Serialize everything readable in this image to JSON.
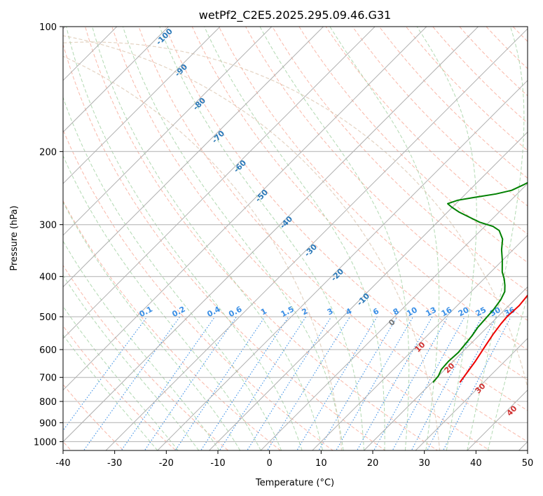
{
  "chart_data": {
    "type": "line",
    "subtype": "skew-t log-p diagram",
    "title": "wetPf2_C2E5.2025.295.09.46.G31",
    "xlabel": "Temperature (°C)",
    "ylabel": "Pressure (hPa)",
    "xlim": [
      -40,
      50
    ],
    "ylim": [
      1050,
      100
    ],
    "x_ticks": [
      -40,
      -30,
      -20,
      -10,
      0,
      10,
      20,
      30,
      40,
      50
    ],
    "y_ticks": [
      1000,
      900,
      800,
      700,
      600,
      500,
      400,
      300,
      200,
      100
    ],
    "grid": true,
    "series": [
      {
        "name": "Temperature",
        "color": "#ee0000",
        "points": [
          [
            25.4,
            720
          ],
          [
            25.0,
            690
          ],
          [
            24.3,
            640
          ],
          [
            23.3,
            590
          ],
          [
            22.5,
            550
          ],
          [
            22.0,
            520
          ],
          [
            21.8,
            500
          ],
          [
            22.0,
            470
          ],
          [
            21.6,
            440
          ],
          [
            20.4,
            410
          ],
          [
            19.0,
            385
          ],
          [
            17.3,
            360
          ],
          [
            15.6,
            335
          ],
          [
            14.6,
            310
          ],
          [
            13.6,
            290
          ],
          [
            12.2,
            265
          ],
          [
            10.8,
            245
          ],
          [
            9.4,
            230
          ],
          [
            7.4,
            215
          ],
          [
            5.9,
            200
          ],
          [
            4.0,
            185
          ],
          [
            2.3,
            173
          ],
          [
            0.9,
            165
          ],
          [
            -0.5,
            155
          ],
          [
            -2.0,
            145
          ],
          [
            -2.8,
            137
          ],
          [
            -3.1,
            130
          ],
          [
            -3.2,
            124
          ],
          [
            -2.4,
            117
          ],
          [
            -1.0,
            110
          ],
          [
            0.3,
            104
          ],
          [
            0.9,
            100
          ]
        ]
      },
      {
        "name": "Dewpoint",
        "color": "#008000",
        "points": [
          [
            20.2,
            720
          ],
          [
            20.0,
            695
          ],
          [
            19.3,
            670
          ],
          [
            19.1,
            640
          ],
          [
            19.3,
            610
          ],
          [
            19.0,
            580
          ],
          [
            18.7,
            555
          ],
          [
            18.2,
            530
          ],
          [
            18.0,
            505
          ],
          [
            17.8,
            480
          ],
          [
            17.3,
            455
          ],
          [
            16.5,
            435
          ],
          [
            15.3,
            420
          ],
          [
            13.9,
            405
          ],
          [
            12.2,
            390
          ],
          [
            9.9,
            365
          ],
          [
            7.8,
            345
          ],
          [
            5.9,
            325
          ],
          [
            3.6,
            310
          ],
          [
            1.6,
            303
          ],
          [
            -1.8,
            296
          ],
          [
            -4.0,
            290
          ],
          [
            -7.7,
            280
          ],
          [
            -10.2,
            272
          ],
          [
            -11.6,
            267
          ],
          [
            -10.3,
            262
          ],
          [
            -7.7,
            258
          ],
          [
            -4.1,
            253
          ],
          [
            -1.8,
            248
          ],
          [
            -0.5,
            240
          ],
          [
            0.8,
            230
          ],
          [
            1.7,
            222
          ],
          [
            2.4,
            213
          ],
          [
            2.6,
            203
          ],
          [
            2.3,
            195
          ],
          [
            1.6,
            187
          ],
          [
            0.4,
            180
          ],
          [
            -0.7,
            173
          ],
          [
            -2.0,
            167
          ],
          [
            -3.3,
            160
          ],
          [
            -4.2,
            153
          ],
          [
            -4.8,
            145
          ],
          [
            -5.4,
            138
          ],
          [
            -5.7,
            130
          ],
          [
            -6.0,
            123
          ],
          [
            -6.4,
            117
          ],
          [
            -6.4,
            112
          ],
          [
            -5.8,
            107
          ],
          [
            -4.6,
            103
          ],
          [
            -3.8,
            100
          ]
        ]
      }
    ],
    "temperature_isotherm_labels": [
      "-100",
      "-90",
      "-80",
      "-70",
      "-60",
      "-50",
      "-40",
      "-30",
      "-20",
      "-10",
      "0",
      "10",
      "20",
      "30",
      "40"
    ],
    "mixing_ratio_labels": [
      "0.1",
      "0.2",
      "0.4",
      "0.6",
      "1",
      "1.5",
      "2",
      "3",
      "4",
      "6",
      "8",
      "10",
      "13",
      "16",
      "20",
      "25",
      "30",
      "36"
    ],
    "colors": {
      "isotherm_grid": "#b0b0b0",
      "dry_adiabat": "#f7a08c",
      "moist_adiabat": "#9fd09f",
      "mixing_ratio": "#3a8fe6",
      "isotherm_label": "#2a78b8",
      "hot_label": "#d03030",
      "zero_label": "#777777",
      "far_curve": "#d8c0a8"
    }
  }
}
